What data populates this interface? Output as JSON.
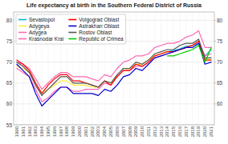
{
  "chart_data": {
    "type": "line",
    "title": "Life expectancy at birth in the Southern Federal District of Russia",
    "x": [
      1990,
      1991,
      1992,
      1993,
      1994,
      1995,
      1996,
      1997,
      1998,
      1999,
      2000,
      2001,
      2002,
      2003,
      2004,
      2005,
      2006,
      2007,
      2008,
      2009,
      2010,
      2011,
      2012,
      2013,
      2014,
      2015,
      2016,
      2017,
      2018,
      2019,
      2020,
      2021
    ],
    "xlim": [
      1989.5,
      2021.5
    ],
    "xticks": [
      1990,
      1991,
      1992,
      1993,
      1994,
      1995,
      1996,
      1997,
      1998,
      1999,
      2000,
      2001,
      2002,
      2003,
      2004,
      2005,
      2006,
      2007,
      2008,
      2009,
      2010,
      2011,
      2012,
      2013,
      2014,
      2015,
      2016,
      2017,
      2018,
      2019,
      2020,
      2021
    ],
    "ylim": [
      55,
      82
    ],
    "yticks": [
      55,
      60,
      65,
      70,
      75,
      80
    ],
    "y2lim": [
      55,
      82
    ],
    "y2ticks": [
      60,
      65,
      70,
      75,
      80
    ],
    "grid": true,
    "legend": "upper left",
    "series": [
      {
        "name": "Sevastopol",
        "color": "#00bcd4",
        "values": [
          null,
          null,
          null,
          null,
          null,
          null,
          null,
          null,
          null,
          null,
          null,
          null,
          null,
          null,
          null,
          null,
          null,
          null,
          null,
          null,
          null,
          null,
          null,
          null,
          72.5,
          72.8,
          73.2,
          73.8,
          74.0,
          74.5,
          71.5,
          73.0
        ]
      },
      {
        "name": "Adygeya",
        "color": "#ffeb3b",
        "values": [
          69.0,
          68.5,
          67.5,
          65.0,
          62.5,
          63.5,
          64.5,
          65.5,
          65.5,
          64.5,
          64.5,
          64.5,
          64.0,
          64.0,
          65.5,
          65.0,
          66.5,
          68.0,
          68.5,
          69.5,
          69.5,
          70.5,
          71.5,
          72.0,
          72.5,
          72.5,
          73.0,
          73.5,
          74.0,
          75.0,
          71.0,
          70.5
        ]
      },
      {
        "name": "Adygea",
        "color": "#ff69b4",
        "values": [
          68.5,
          67.5,
          66.5,
          63.5,
          60.5,
          61.5,
          63.0,
          64.0,
          64.0,
          63.0,
          63.0,
          63.5,
          63.5,
          63.5,
          65.0,
          64.5,
          66.5,
          68.0,
          68.0,
          69.0,
          69.0,
          70.0,
          71.0,
          71.5,
          72.0,
          72.5,
          73.0,
          73.5,
          74.0,
          75.0,
          71.5,
          72.0
        ]
      },
      {
        "name": "Krasnodar Krai",
        "color": "#ff69b4",
        "values": [
          70.0,
          69.5,
          68.5,
          66.0,
          63.5,
          65.0,
          66.5,
          67.5,
          67.5,
          66.5,
          66.5,
          66.5,
          66.0,
          65.5,
          67.0,
          66.5,
          68.5,
          70.0,
          70.5,
          71.5,
          71.5,
          72.0,
          73.5,
          74.0,
          74.5,
          74.5,
          75.0,
          76.0,
          76.5,
          77.5,
          73.5,
          73.5
        ]
      },
      {
        "name": "Volgograd Oblast",
        "color": "#ff0000",
        "values": [
          70.5,
          69.5,
          68.0,
          65.0,
          62.5,
          64.5,
          66.0,
          67.0,
          67.0,
          65.5,
          65.5,
          65.0,
          64.5,
          64.0,
          65.5,
          64.5,
          66.5,
          68.0,
          68.0,
          69.5,
          69.0,
          70.0,
          71.5,
          72.0,
          72.5,
          72.5,
          73.0,
          73.5,
          74.0,
          75.0,
          70.5,
          70.5
        ]
      },
      {
        "name": "Astrakhan Oblast",
        "color": "#0000cd",
        "values": [
          69.5,
          68.0,
          66.5,
          62.5,
          59.5,
          61.0,
          62.5,
          64.0,
          64.0,
          62.5,
          62.5,
          62.5,
          62.5,
          62.0,
          63.5,
          63.0,
          64.5,
          66.5,
          67.0,
          68.5,
          68.0,
          69.5,
          71.0,
          71.5,
          72.0,
          72.5,
          73.0,
          73.5,
          73.5,
          74.5,
          69.5,
          70.0
        ]
      },
      {
        "name": "Rostov Oblast",
        "color": "#555555",
        "values": [
          70.0,
          69.0,
          67.5,
          64.5,
          62.0,
          63.5,
          65.0,
          66.5,
          66.5,
          65.0,
          65.0,
          65.0,
          64.5,
          64.0,
          65.5,
          65.0,
          67.0,
          68.5,
          68.5,
          70.0,
          69.5,
          70.5,
          72.0,
          72.5,
          73.0,
          73.0,
          74.0,
          74.5,
          74.5,
          75.5,
          71.0,
          71.0
        ]
      },
      {
        "name": "Republic of Crimea",
        "color": "#00cc00",
        "values": [
          null,
          null,
          null,
          null,
          null,
          null,
          null,
          null,
          null,
          null,
          null,
          null,
          null,
          null,
          null,
          null,
          null,
          null,
          null,
          null,
          null,
          null,
          null,
          null,
          71.5,
          71.5,
          72.0,
          72.5,
          73.0,
          74.0,
          70.0,
          73.5
        ]
      }
    ]
  }
}
